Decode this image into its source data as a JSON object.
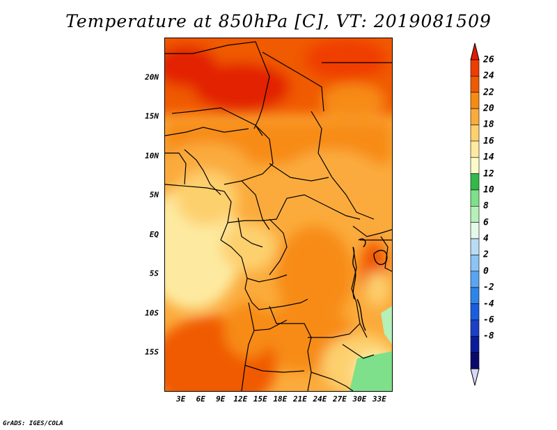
{
  "title": "Temperature at 850hPa [C], VT: 2019081509",
  "credit": "GrADS: IGES/COLA",
  "map": {
    "lat_labels": [
      "20N",
      "15N",
      "10N",
      "5N",
      "EQ",
      "5S",
      "10S",
      "15S"
    ],
    "lat_values": [
      20,
      15,
      10,
      5,
      0,
      -5,
      -10,
      -15
    ],
    "lon_labels": [
      "3E",
      "6E",
      "9E",
      "12E",
      "15E",
      "18E",
      "21E",
      "24E",
      "27E",
      "30E",
      "33E"
    ],
    "lon_values": [
      3,
      6,
      9,
      12,
      15,
      18,
      21,
      24,
      27,
      30,
      33
    ],
    "lon_range": [
      0.5,
      35
    ],
    "lat_range": [
      -20,
      25
    ]
  },
  "colorbar": {
    "labels": [
      "26",
      "24",
      "22",
      "20",
      "18",
      "16",
      "14",
      "12",
      "10",
      "8",
      "6",
      "4",
      "2",
      "0",
      "-2",
      "-4",
      "-6",
      "-8"
    ],
    "colors": [
      "#f03c00",
      "#f05a00",
      "#f78b12",
      "#fbab3c",
      "#fdd06e",
      "#fdeaa0",
      "#fdfcc8",
      "#34b84a",
      "#7ee08a",
      "#b5f0b8",
      "#e4f9e8",
      "#b9dcf5",
      "#8bc4f5",
      "#5aa5f2",
      "#2e84ea",
      "#1a5edf",
      "#1c3fc5",
      "#0a1c9a",
      "#0a0a6e"
    ],
    "top_color": "#e01a00",
    "bottom_color": "#d8d8f8"
  }
}
